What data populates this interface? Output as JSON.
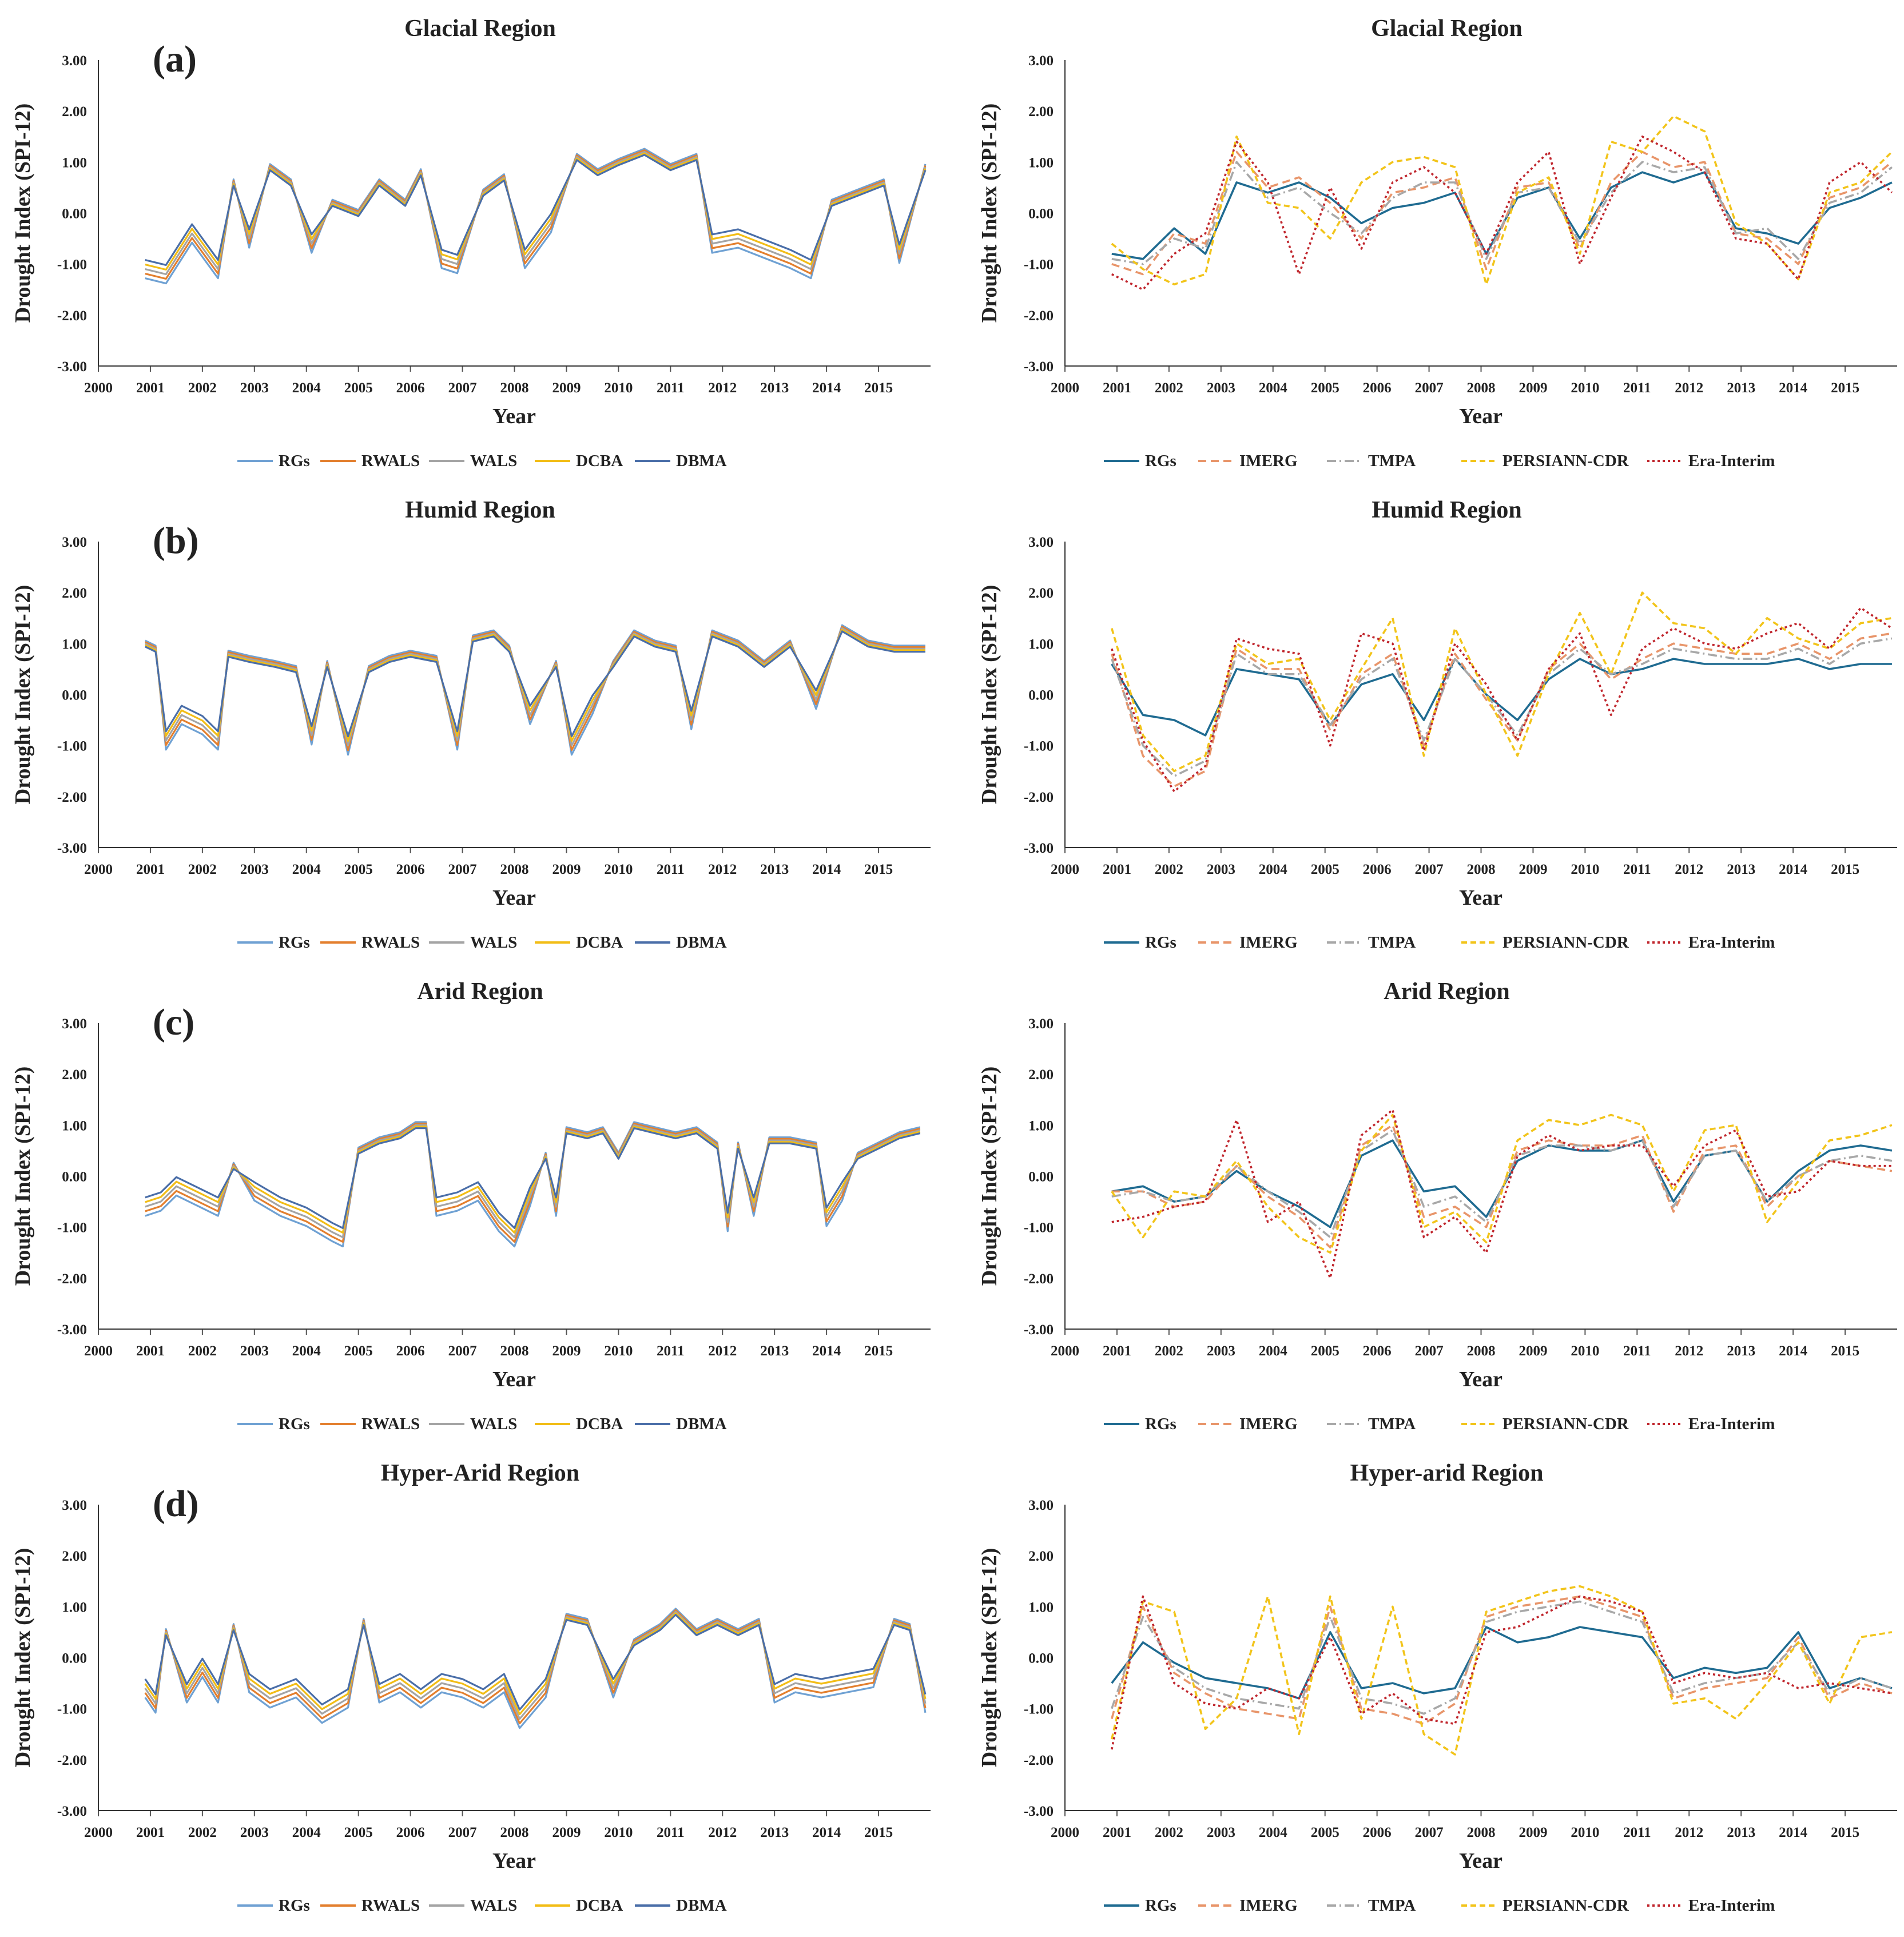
{
  "figure": {
    "ylabel": "Drought Index (SPI-12)",
    "xlabel": "Year",
    "yticks": [
      "3.00",
      "2.00",
      "1.00",
      "0.00",
      "-1.00",
      "-2.00",
      "-3.00"
    ],
    "xticks": [
      "2000",
      "2001",
      "2002",
      "2003",
      "2004",
      "2005",
      "2006",
      "2007",
      "2008",
      "2009",
      "2010",
      "2011",
      "2012",
      "2013",
      "2014",
      "2015"
    ]
  },
  "legends": {
    "left": [
      {
        "name": "RGs",
        "color": "#6fa1d3",
        "dash": ""
      },
      {
        "name": "RWALS",
        "color": "#e37f2e",
        "dash": ""
      },
      {
        "name": "WALS",
        "color": "#a4a4a4",
        "dash": ""
      },
      {
        "name": "DCBA",
        "color": "#f2bd16",
        "dash": ""
      },
      {
        "name": "DBMA",
        "color": "#4a6ea8",
        "dash": ""
      }
    ],
    "right": [
      {
        "name": "RGs",
        "color": "#1f6b91",
        "dash": ""
      },
      {
        "name": "IMERG",
        "color": "#e8956a",
        "dash": "14,8"
      },
      {
        "name": "TMPA",
        "color": "#a8a8a8",
        "dash": "16,6,3,6"
      },
      {
        "name": "PERSIANN-CDR",
        "color": "#f2c41a",
        "dash": "10,6"
      },
      {
        "name": "Era-Interim",
        "color": "#c0262d",
        "dash": "4,5"
      }
    ]
  },
  "chart_data": [
    {
      "type": "line",
      "panel": "(a)",
      "title": "Glacial Region",
      "xlabel": "Year",
      "ylabel": "Drought Index (SPI-12)",
      "xlim": [
        2000,
        2016
      ],
      "ylim": [
        -3,
        3
      ],
      "series_names": [
        "RGs",
        "RWALS",
        "WALS",
        "DCBA",
        "DBMA"
      ],
      "x": [
        2000.9,
        2001.3,
        2001.8,
        2002.3,
        2002.6,
        2002.9,
        2003.3,
        2003.7,
        2004.1,
        2004.5,
        2005.0,
        2005.4,
        2005.9,
        2006.2,
        2006.6,
        2006.9,
        2007.4,
        2007.8,
        2008.2,
        2008.7,
        2009.2,
        2009.6,
        2010.0,
        2010.5,
        2011.0,
        2011.5,
        2011.8,
        2012.3,
        2012.8,
        2013.3,
        2013.7,
        2014.1,
        2014.6,
        2015.1,
        2015.4,
        2015.9
      ],
      "values": [
        -1.1,
        -1.2,
        -0.4,
        -1.1,
        0.6,
        -0.5,
        0.9,
        0.6,
        -0.6,
        0.2,
        0.0,
        0.6,
        0.2,
        0.8,
        -0.9,
        -1.0,
        0.4,
        0.7,
        -0.9,
        -0.2,
        1.1,
        0.8,
        1.0,
        1.2,
        0.9,
        1.1,
        -0.6,
        -0.5,
        -0.7,
        -0.9,
        -1.1,
        0.2,
        0.4,
        0.6,
        -0.8,
        0.9
      ]
    },
    {
      "type": "line",
      "panel": "",
      "title": "Glacial Region",
      "xlabel": "Year",
      "ylabel": "Drought Index (SPI-12)",
      "xlim": [
        2000,
        2016
      ],
      "ylim": [
        -3,
        3
      ],
      "series": [
        {
          "name": "RGs",
          "values": [
            -0.8,
            -0.9,
            -0.3,
            -0.8,
            0.6,
            0.4,
            0.6,
            0.3,
            -0.2,
            0.1,
            0.2,
            0.4,
            -0.8,
            0.3,
            0.5,
            -0.5,
            0.5,
            0.8,
            0.6,
            0.8,
            -0.3,
            -0.4,
            -0.6,
            0.1,
            0.3,
            0.6
          ]
        },
        {
          "name": "IMERG",
          "values": [
            -1.0,
            -1.2,
            -0.4,
            -0.6,
            1.2,
            0.5,
            0.7,
            0.2,
            -0.5,
            0.4,
            0.5,
            0.7,
            -1.1,
            0.5,
            0.6,
            -0.7,
            0.6,
            1.2,
            0.9,
            1.0,
            -0.4,
            -0.5,
            -1.0,
            0.3,
            0.5,
            1.0
          ]
        },
        {
          "name": "TMPA",
          "values": [
            -0.9,
            -1.0,
            -0.5,
            -0.7,
            1.0,
            0.3,
            0.5,
            0.0,
            -0.4,
            0.3,
            0.6,
            0.6,
            -0.9,
            0.4,
            0.5,
            -0.6,
            0.4,
            1.0,
            0.8,
            0.9,
            -0.4,
            -0.3,
            -0.9,
            0.2,
            0.4,
            0.9
          ]
        },
        {
          "name": "PERSIANN-CDR",
          "values": [
            -0.6,
            -1.1,
            -1.4,
            -1.2,
            1.5,
            0.2,
            0.1,
            -0.5,
            0.6,
            1.0,
            1.1,
            0.9,
            -1.4,
            0.4,
            0.7,
            -0.8,
            1.4,
            1.2,
            1.9,
            1.6,
            -0.2,
            -0.6,
            -1.3,
            0.4,
            0.6,
            1.2
          ]
        },
        {
          "name": "Era-Interim",
          "values": [
            -1.2,
            -1.5,
            -0.8,
            -0.4,
            1.4,
            0.6,
            -1.2,
            0.5,
            -0.7,
            0.6,
            0.9,
            0.4,
            -0.8,
            0.6,
            1.2,
            -1.0,
            0.3,
            1.5,
            1.2,
            0.8,
            -0.5,
            -0.6,
            -1.3,
            0.6,
            1.0,
            0.4
          ]
        }
      ]
    },
    {
      "type": "line",
      "panel": "(b)",
      "title": "Humid Region",
      "xlabel": "Year",
      "ylabel": "Drought Index (SPI-12)",
      "xlim": [
        2000,
        2016
      ],
      "ylim": [
        -3,
        3
      ],
      "series_names": [
        "RGs",
        "RWALS",
        "WALS",
        "DCBA",
        "DBMA"
      ],
      "x": [
        2000.9,
        2001.1,
        2001.3,
        2001.6,
        2002.0,
        2002.3,
        2002.5,
        2002.9,
        2003.4,
        2003.8,
        2004.1,
        2004.4,
        2004.8,
        2005.2,
        2005.6,
        2006.0,
        2006.5,
        2006.9,
        2007.2,
        2007.6,
        2007.9,
        2008.3,
        2008.8,
        2009.1,
        2009.5,
        2009.9,
        2010.3,
        2010.7,
        2011.1,
        2011.4,
        2011.8,
        2012.3,
        2012.8,
        2013.3,
        2013.8,
        2014.3,
        2014.8,
        2015.3,
        2015.9
      ],
      "values": [
        1.0,
        0.9,
        -0.9,
        -0.4,
        -0.6,
        -0.9,
        0.8,
        0.7,
        0.6,
        0.5,
        -0.8,
        0.6,
        -1.0,
        0.5,
        0.7,
        0.8,
        0.7,
        -0.9,
        1.1,
        1.2,
        0.9,
        -0.4,
        0.6,
        -1.0,
        -0.2,
        0.6,
        1.2,
        1.0,
        0.9,
        -0.5,
        1.2,
        1.0,
        0.6,
        1.0,
        -0.1,
        1.3,
        1.0,
        0.9,
        0.9
      ]
    },
    {
      "type": "line",
      "panel": "",
      "title": "Humid Region",
      "xlabel": "Year",
      "ylabel": "Drought Index (SPI-12)",
      "xlim": [
        2000,
        2016
      ],
      "ylim": [
        -3,
        3
      ],
      "series": [
        {
          "name": "RGs",
          "values": [
            0.6,
            -0.4,
            -0.5,
            -0.8,
            0.5,
            0.4,
            0.3,
            -0.6,
            0.2,
            0.4,
            -0.5,
            0.7,
            0.0,
            -0.5,
            0.3,
            0.7,
            0.4,
            0.5,
            0.7,
            0.6,
            0.6,
            0.6,
            0.7,
            0.5,
            0.6,
            0.6
          ]
        },
        {
          "name": "IMERG",
          "values": [
            0.8,
            -1.2,
            -1.8,
            -1.5,
            0.9,
            0.5,
            0.5,
            -0.7,
            0.4,
            0.8,
            -1.0,
            0.8,
            -0.1,
            -0.9,
            0.5,
            1.0,
            0.3,
            0.7,
            1.0,
            0.9,
            0.8,
            0.8,
            1.0,
            0.7,
            1.1,
            1.2
          ]
        },
        {
          "name": "TMPA",
          "values": [
            0.7,
            -1.0,
            -1.6,
            -1.3,
            0.8,
            0.4,
            0.4,
            -0.6,
            0.3,
            0.7,
            -0.9,
            0.7,
            0.0,
            -0.8,
            0.4,
            0.9,
            0.4,
            0.6,
            0.9,
            0.8,
            0.7,
            0.7,
            0.9,
            0.6,
            1.0,
            1.1
          ]
        },
        {
          "name": "PERSIANN-CDR",
          "values": [
            1.3,
            -0.8,
            -1.5,
            -1.2,
            1.0,
            0.6,
            0.7,
            -0.5,
            0.5,
            1.5,
            -1.2,
            1.3,
            0.0,
            -1.2,
            0.4,
            1.6,
            0.4,
            2.0,
            1.4,
            1.3,
            0.8,
            1.5,
            1.1,
            0.9,
            1.4,
            1.5
          ]
        },
        {
          "name": "Era-Interim",
          "values": [
            0.9,
            -0.9,
            -1.9,
            -1.4,
            1.1,
            0.9,
            0.8,
            -1.0,
            1.2,
            1.0,
            -1.1,
            1.0,
            0.2,
            -0.9,
            0.5,
            1.2,
            -0.4,
            0.9,
            1.3,
            1.0,
            0.9,
            1.2,
            1.4,
            0.9,
            1.7,
            1.3
          ]
        }
      ]
    },
    {
      "type": "line",
      "panel": "(c)",
      "title": "Arid Region",
      "xlabel": "Year",
      "ylabel": "Drought Index (SPI-12)",
      "xlim": [
        2000,
        2016
      ],
      "ylim": [
        -3,
        3
      ],
      "series_names": [
        "RGs",
        "RWALS",
        "WALS",
        "DCBA",
        "DBMA"
      ],
      "x": [
        2000.9,
        2001.2,
        2001.5,
        2001.9,
        2002.3,
        2002.6,
        2003.0,
        2003.5,
        2004.0,
        2004.5,
        2004.7,
        2005.0,
        2005.4,
        2005.8,
        2006.1,
        2006.3,
        2006.5,
        2006.9,
        2007.3,
        2007.7,
        2008.0,
        2008.3,
        2008.6,
        2008.8,
        2009.0,
        2009.4,
        2009.7,
        2010.0,
        2010.3,
        2010.7,
        2011.1,
        2011.5,
        2011.9,
        2012.1,
        2012.3,
        2012.6,
        2012.9,
        2013.3,
        2013.8,
        2014.0,
        2014.3,
        2014.6,
        2015.0,
        2015.4,
        2015.8
      ],
      "values": [
        -0.6,
        -0.5,
        -0.2,
        -0.4,
        -0.6,
        0.2,
        -0.3,
        -0.6,
        -0.8,
        -1.1,
        -1.2,
        0.5,
        0.7,
        0.8,
        1.0,
        1.0,
        -0.6,
        -0.5,
        -0.3,
        -0.9,
        -1.2,
        -0.4,
        0.4,
        -0.6,
        0.9,
        0.8,
        0.9,
        0.4,
        1.0,
        0.9,
        0.8,
        0.9,
        0.6,
        -0.9,
        0.6,
        -0.6,
        0.7,
        0.7,
        0.6,
        -0.8,
        -0.3,
        0.4,
        0.6,
        0.8,
        0.9
      ]
    },
    {
      "type": "line",
      "panel": "",
      "title": "Arid Region",
      "xlabel": "Year",
      "ylabel": "Drought Index (SPI-12)",
      "xlim": [
        2000,
        2016
      ],
      "ylim": [
        -3,
        3
      ],
      "series": [
        {
          "name": "RGs",
          "values": [
            -0.3,
            -0.2,
            -0.5,
            -0.4,
            0.1,
            -0.3,
            -0.6,
            -1.0,
            0.4,
            0.7,
            -0.3,
            -0.2,
            -0.8,
            0.3,
            0.6,
            0.5,
            0.5,
            0.7,
            -0.5,
            0.4,
            0.5,
            -0.5,
            0.1,
            0.5,
            0.6,
            0.5
          ]
        },
        {
          "name": "IMERG",
          "values": [
            -0.3,
            -0.3,
            -0.6,
            -0.5,
            0.2,
            -0.4,
            -0.8,
            -1.4,
            0.6,
            1.0,
            -0.8,
            -0.6,
            -1.0,
            0.5,
            0.7,
            0.6,
            0.6,
            0.8,
            -0.7,
            0.5,
            0.6,
            -0.6,
            0.0,
            0.3,
            0.2,
            0.1
          ]
        },
        {
          "name": "TMPA",
          "values": [
            -0.4,
            -0.3,
            -0.5,
            -0.4,
            0.2,
            -0.3,
            -0.7,
            -1.2,
            0.5,
            0.9,
            -0.6,
            -0.4,
            -0.9,
            0.4,
            0.6,
            0.6,
            0.5,
            0.7,
            -0.6,
            0.4,
            0.5,
            -0.5,
            0.0,
            0.3,
            0.4,
            0.3
          ]
        },
        {
          "name": "PERSIANN-CDR",
          "values": [
            -0.3,
            -1.2,
            -0.3,
            -0.4,
            0.3,
            -0.6,
            -1.2,
            -1.5,
            0.5,
            1.2,
            -1.0,
            -0.7,
            -1.3,
            0.7,
            1.1,
            1.0,
            1.2,
            1.0,
            -0.3,
            0.9,
            1.0,
            -0.9,
            -0.1,
            0.7,
            0.8,
            1.0
          ]
        },
        {
          "name": "Era-Interim",
          "values": [
            -0.9,
            -0.8,
            -0.6,
            -0.5,
            1.1,
            -0.9,
            -0.5,
            -2.0,
            0.8,
            1.3,
            -1.2,
            -0.8,
            -1.5,
            0.4,
            0.8,
            0.5,
            0.6,
            0.6,
            -0.2,
            0.6,
            0.9,
            -0.4,
            -0.3,
            0.3,
            0.2,
            0.2
          ]
        }
      ]
    },
    {
      "type": "line",
      "panel": "(d)",
      "title": "Hyper-Arid Region",
      "xlabel": "Year",
      "ylabel": "Drought Index (SPI-12)",
      "xlim": [
        2000,
        2016
      ],
      "ylim": [
        -3,
        3
      ],
      "series_names": [
        "RGs",
        "RWALS",
        "WALS",
        "DCBA",
        "DBMA"
      ],
      "x": [
        2000.9,
        2001.1,
        2001.3,
        2001.7,
        2002.0,
        2002.3,
        2002.6,
        2002.9,
        2003.3,
        2003.8,
        2004.3,
        2004.8,
        2005.1,
        2005.4,
        2005.8,
        2006.2,
        2006.6,
        2007.0,
        2007.4,
        2007.8,
        2008.1,
        2008.6,
        2009.0,
        2009.4,
        2009.9,
        2010.3,
        2010.8,
        2011.1,
        2011.5,
        2011.9,
        2012.3,
        2012.7,
        2013.0,
        2013.4,
        2013.9,
        2014.4,
        2014.9,
        2015.3,
        2015.6,
        2015.9
      ],
      "values": [
        -0.6,
        -0.9,
        0.5,
        -0.7,
        -0.2,
        -0.7,
        0.6,
        -0.5,
        -0.8,
        -0.6,
        -1.1,
        -0.8,
        0.7,
        -0.7,
        -0.5,
        -0.8,
        -0.5,
        -0.6,
        -0.8,
        -0.5,
        -1.2,
        -0.6,
        0.8,
        0.7,
        -0.6,
        0.3,
        0.6,
        0.9,
        0.5,
        0.7,
        0.5,
        0.7,
        -0.7,
        -0.5,
        -0.6,
        -0.5,
        -0.4,
        0.7,
        0.6,
        -0.9
      ]
    },
    {
      "type": "line",
      "panel": "",
      "title": "Hyper-arid Region",
      "xlabel": "Year",
      "ylabel": "Drought Index (SPI-12)",
      "xlim": [
        2000,
        2016
      ],
      "ylim": [
        -3,
        3
      ],
      "series": [
        {
          "name": "RGs",
          "values": [
            -0.5,
            0.3,
            -0.1,
            -0.4,
            -0.5,
            -0.6,
            -0.8,
            0.5,
            -0.6,
            -0.5,
            -0.7,
            -0.6,
            0.6,
            0.3,
            0.4,
            0.6,
            0.5,
            0.4,
            -0.4,
            -0.2,
            -0.3,
            -0.2,
            0.5,
            -0.6,
            -0.4,
            -0.6
          ]
        },
        {
          "name": "IMERG",
          "values": [
            -1.2,
            1.0,
            -0.3,
            -0.7,
            -1.0,
            -1.1,
            -1.2,
            1.0,
            -1.0,
            -1.1,
            -1.3,
            -0.9,
            0.8,
            1.0,
            1.1,
            1.2,
            1.0,
            0.8,
            -0.8,
            -0.6,
            -0.5,
            -0.4,
            0.4,
            -0.8,
            -0.5,
            -0.7
          ]
        },
        {
          "name": "TMPA",
          "values": [
            -1.0,
            0.8,
            -0.2,
            -0.6,
            -0.8,
            -0.9,
            -1.0,
            0.8,
            -0.8,
            -0.9,
            -1.1,
            -0.8,
            0.7,
            0.9,
            1.0,
            1.1,
            0.9,
            0.7,
            -0.7,
            -0.5,
            -0.4,
            -0.3,
            0.3,
            -0.7,
            -0.4,
            -0.6
          ]
        },
        {
          "name": "PERSIANN-CDR",
          "values": [
            -1.6,
            1.1,
            0.9,
            -1.4,
            -0.8,
            1.2,
            -1.5,
            1.2,
            -1.2,
            1.0,
            -1.5,
            -1.9,
            0.9,
            1.1,
            1.3,
            1.4,
            1.2,
            0.9,
            -0.9,
            -0.8,
            -1.2,
            -0.5,
            0.3,
            -0.9,
            0.4,
            0.5
          ]
        },
        {
          "name": "Era-Interim",
          "values": [
            -1.8,
            1.2,
            -0.5,
            -0.9,
            -1.0,
            -0.6,
            -0.8,
            0.4,
            -1.1,
            -0.7,
            -1.2,
            -1.3,
            0.5,
            0.6,
            0.9,
            1.2,
            1.1,
            0.9,
            -0.5,
            -0.3,
            -0.4,
            -0.3,
            -0.6,
            -0.5,
            -0.6,
            -0.7
          ]
        }
      ]
    }
  ]
}
